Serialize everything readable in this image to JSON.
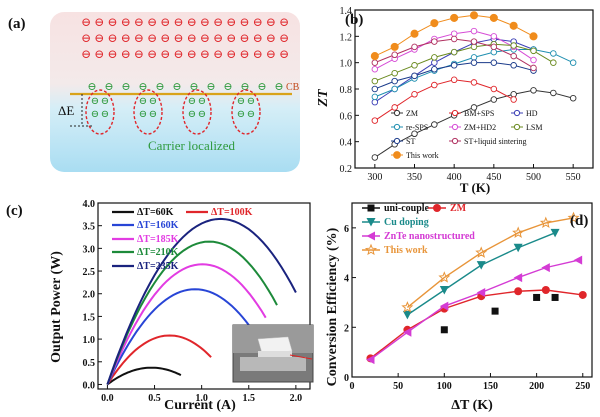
{
  "panel_a": {
    "label": "(a)",
    "cb_label": "CB",
    "delta_label": "ΔE",
    "caption": "Carrier localized",
    "electron_glyph": "⊖",
    "colors": {
      "electron": "#e0262b",
      "localized": "#2e9a3e",
      "band": "#d9a31a",
      "ellipse": "#e0262b",
      "caption": "#2e9a3e"
    }
  },
  "chart_data": [
    {
      "panel": "(b)",
      "type": "line",
      "xlabel": "T (K)",
      "ylabel": "ZT",
      "xlim": [
        275,
        575
      ],
      "ylim": [
        0.2,
        1.4
      ],
      "xticks": [
        300,
        350,
        400,
        450,
        500,
        550
      ],
      "yticks": [
        0.2,
        0.4,
        0.6,
        0.8,
        1.0,
        1.2,
        1.4
      ],
      "legend_position": "lower-center",
      "series": [
        {
          "name": "ZM",
          "color": "#333333",
          "marker": "circle-open",
          "x": [
            300,
            325,
            350,
            375,
            400,
            425,
            450,
            475,
            500,
            525,
            550
          ],
          "y": [
            0.28,
            0.38,
            0.46,
            0.53,
            0.6,
            0.66,
            0.72,
            0.76,
            0.79,
            0.77,
            0.73
          ]
        },
        {
          "name": "BM+SPS",
          "color": "#e0262b",
          "marker": "circle-open",
          "x": [
            300,
            325,
            350,
            375,
            400,
            425,
            450,
            475
          ],
          "y": [
            0.56,
            0.66,
            0.76,
            0.83,
            0.87,
            0.85,
            0.8,
            0.72
          ]
        },
        {
          "name": "HD",
          "color": "#3b3fb6",
          "marker": "circle-open",
          "x": [
            300,
            325,
            350,
            375,
            400,
            425,
            450,
            475,
            500
          ],
          "y": [
            0.7,
            0.8,
            0.9,
            1.0,
            1.08,
            1.15,
            1.18,
            1.16,
            1.1
          ]
        },
        {
          "name": "re-SPS",
          "color": "#1f8fb0",
          "marker": "circle-open",
          "x": [
            300,
            325,
            350,
            375,
            400,
            425,
            450,
            475,
            500,
            525,
            550
          ],
          "y": [
            0.74,
            0.8,
            0.88,
            0.94,
            0.99,
            1.04,
            1.08,
            1.1,
            1.1,
            1.07,
            1.0
          ]
        },
        {
          "name": "ZM+HD2",
          "color": "#d64cd6",
          "marker": "circle-open",
          "x": [
            300,
            325,
            350,
            375,
            400,
            425,
            450,
            475,
            500
          ],
          "y": [
            0.95,
            1.03,
            1.1,
            1.18,
            1.22,
            1.24,
            1.2,
            1.12,
            1.02
          ]
        },
        {
          "name": "LSM",
          "color": "#6a8a1f",
          "marker": "circle-open",
          "x": [
            300,
            325,
            350,
            375,
            400,
            425,
            450,
            475,
            500,
            525
          ],
          "y": [
            0.86,
            0.92,
            0.98,
            1.04,
            1.08,
            1.12,
            1.14,
            1.13,
            1.09,
            1.0
          ]
        },
        {
          "name": "ST",
          "color": "#1a3a8a",
          "marker": "circle-open",
          "x": [
            300,
            325,
            350,
            375,
            400,
            425,
            450,
            475,
            500
          ],
          "y": [
            0.8,
            0.86,
            0.9,
            0.95,
            0.98,
            1.0,
            1.0,
            0.98,
            0.94
          ]
        },
        {
          "name": "ST+liquid sintering",
          "color": "#b03060",
          "marker": "circle-open",
          "x": [
            300,
            325,
            350,
            375,
            400,
            425,
            450,
            475,
            500
          ],
          "y": [
            1.0,
            1.06,
            1.12,
            1.16,
            1.18,
            1.16,
            1.12,
            1.05,
            0.96
          ]
        },
        {
          "name": "This work",
          "color": "#f08c1c",
          "marker": "circle-filled",
          "x": [
            300,
            325,
            350,
            375,
            400,
            425,
            450,
            475,
            500
          ],
          "y": [
            1.05,
            1.12,
            1.22,
            1.3,
            1.34,
            1.36,
            1.34,
            1.28,
            1.2
          ]
        }
      ]
    },
    {
      "panel": "(c)",
      "type": "line",
      "xlabel": "Current (A)",
      "ylabel": "Output Power (W)",
      "xlim": [
        -0.1,
        2.15
      ],
      "ylim": [
        -0.1,
        4.0
      ],
      "xticks": [
        0.0,
        0.5,
        1.0,
        1.5,
        2.0
      ],
      "yticks": [
        0.0,
        0.5,
        1.0,
        1.5,
        2.0,
        2.5,
        3.0,
        3.5,
        4.0
      ],
      "legend_position": "top-left",
      "series": [
        {
          "name": "ΔT=60K",
          "color": "#111111",
          "imax": 0.78,
          "pmax": 0.37
        },
        {
          "name": "ΔT=100K",
          "color": "#e0262b",
          "imax": 1.1,
          "pmax": 1.08
        },
        {
          "name": "ΔT=160K",
          "color": "#2845d6",
          "imax": 1.55,
          "pmax": 2.1
        },
        {
          "name": "ΔT=185K",
          "color": "#e23ce2",
          "imax": 1.68,
          "pmax": 2.65
        },
        {
          "name": "ΔT=210K",
          "color": "#1d8a3a",
          "imax": 1.8,
          "pmax": 3.15
        },
        {
          "name": "ΔT=235K",
          "color": "#1a237e",
          "imax": 2.0,
          "pmax": 3.65
        }
      ]
    },
    {
      "panel": "(d)",
      "type": "line",
      "xlabel": "ΔT (K)",
      "ylabel": "Conversion Efficiency (%)",
      "xlim": [
        0,
        260
      ],
      "ylim": [
        0,
        7
      ],
      "xticks": [
        0,
        50,
        100,
        150,
        200,
        250
      ],
      "yticks": [
        0,
        2,
        4,
        6
      ],
      "legend_position": "top-left",
      "series": [
        {
          "name": "uni-couple",
          "color": "#111111",
          "marker": "square",
          "x": [
            100,
            155,
            200,
            220
          ],
          "y": [
            1.9,
            2.65,
            3.2,
            3.2
          ]
        },
        {
          "name": "ZM",
          "color": "#e0262b",
          "marker": "circle",
          "x": [
            20,
            60,
            100,
            140,
            180,
            210,
            250
          ],
          "y": [
            0.75,
            1.9,
            2.75,
            3.25,
            3.45,
            3.5,
            3.3
          ]
        },
        {
          "name": "Cu doping",
          "color": "#1a8a8a",
          "marker": "triangle-down",
          "x": [
            60,
            100,
            140,
            180,
            220
          ],
          "y": [
            2.5,
            3.5,
            4.5,
            5.2,
            5.8
          ]
        },
        {
          "name": "ZnTe nanostructured",
          "color": "#d43bd4",
          "marker": "triangle-left",
          "x": [
            20,
            60,
            100,
            140,
            180,
            210,
            245
          ],
          "y": [
            0.7,
            1.8,
            2.85,
            3.4,
            4.0,
            4.4,
            4.7
          ]
        },
        {
          "name": "This work",
          "color": "#e8953a",
          "marker": "star-open",
          "x": [
            60,
            100,
            140,
            180,
            210,
            240
          ],
          "y": [
            2.8,
            4.0,
            5.0,
            5.8,
            6.2,
            6.4
          ]
        }
      ]
    }
  ]
}
